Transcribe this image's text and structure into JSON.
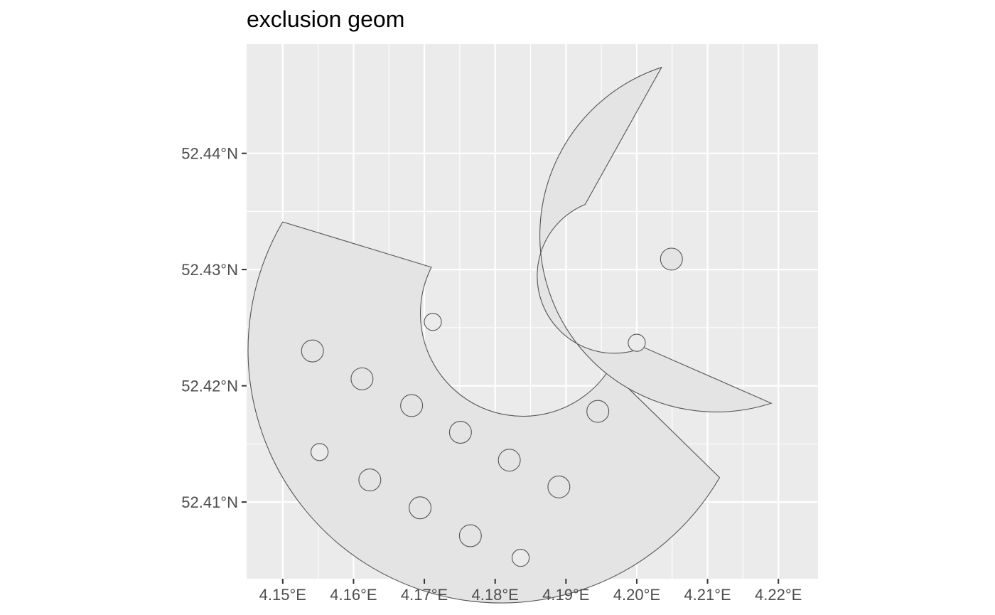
{
  "chart_data": {
    "type": "map",
    "title": "exclusion geom",
    "crs_units": "degrees",
    "xlim": [
      4.1449,
      4.2256
    ],
    "ylim": [
      52.4034,
      52.4494
    ],
    "x_ticks": [
      {
        "value": 4.15,
        "label": "4.15°E"
      },
      {
        "value": 4.16,
        "label": "4.16°E"
      },
      {
        "value": 4.17,
        "label": "4.17°E"
      },
      {
        "value": 4.18,
        "label": "4.18°E"
      },
      {
        "value": 4.19,
        "label": "4.19°E"
      },
      {
        "value": 4.2,
        "label": "4.20°E"
      },
      {
        "value": 4.21,
        "label": "4.21°E"
      },
      {
        "value": 4.22,
        "label": "4.22°E"
      }
    ],
    "y_ticks": [
      {
        "value": 52.41,
        "label": "52.41°N"
      },
      {
        "value": 52.42,
        "label": "52.42°N"
      },
      {
        "value": 52.43,
        "label": "52.43°N"
      },
      {
        "value": 52.44,
        "label": "52.44°N"
      }
    ],
    "grid": true,
    "panel_background": "#ebebeb",
    "gridline_color": "#ffffff",
    "polygon_fill": "#e4e4e4",
    "polygon_stroke": "#555555",
    "annular_sectors": [
      {
        "id": "sector-large",
        "center": [
          4.1855,
          52.4277
        ],
        "inner_radius_deg_lon": 0.0145,
        "outer_radius_deg_lon": 0.0342,
        "outer_start": [
          4.15,
          52.4341
        ],
        "outer_end": [
          4.2117,
          52.4121
        ],
        "inner_start": [
          4.171,
          52.4302
        ],
        "inner_end": [
          4.1961,
          52.4214
        ]
      },
      {
        "id": "sector-small",
        "center": [
          4.1997,
          52.4277
        ],
        "inner_radius_deg_lon": 0.007,
        "outer_radius_deg_lon": 0.022,
        "outer_start": [
          4.2035,
          52.4474
        ],
        "outer_end": [
          4.219,
          52.4185
        ],
        "inner_start": [
          4.1927,
          52.4356
        ],
        "inner_end": [
          4.201,
          52.4233
        ]
      }
    ],
    "exclusion_circles": [
      {
        "lon": 4.1542,
        "lat": 52.423
      },
      {
        "lon": 4.1612,
        "lat": 52.4206
      },
      {
        "lon": 4.1682,
        "lat": 52.4183
      },
      {
        "lon": 4.1751,
        "lat": 52.416
      },
      {
        "lon": 4.182,
        "lat": 52.4136
      },
      {
        "lon": 4.189,
        "lat": 52.4113
      },
      {
        "lon": 4.1623,
        "lat": 52.4119
      },
      {
        "lon": 4.1694,
        "lat": 52.4095
      },
      {
        "lon": 4.1765,
        "lat": 52.4071
      },
      {
        "lon": 4.1945,
        "lat": 52.4178
      },
      {
        "lon": 4.2049,
        "lat": 52.4309
      }
    ],
    "edge_notches": [
      {
        "lon": 4.1712,
        "lat": 52.4255
      },
      {
        "lon": 4.1552,
        "lat": 52.4143
      },
      {
        "lon": 4.1836,
        "lat": 52.4052
      },
      {
        "lon": 4.2,
        "lat": 52.4237
      }
    ],
    "exclusion_radius_deg_lon": 0.00155
  }
}
